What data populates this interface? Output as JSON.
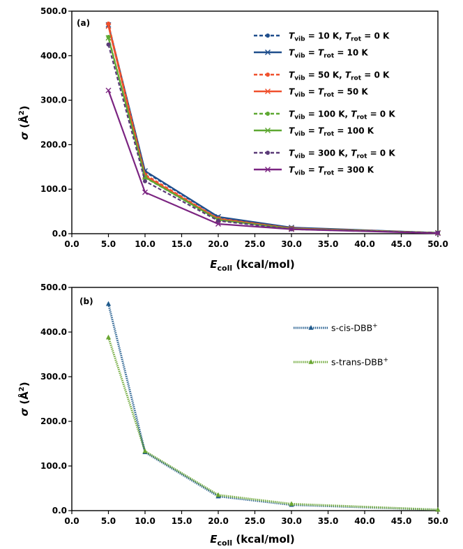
{
  "chart_data": [
    {
      "type": "line",
      "panel_label": "(a)",
      "xlabel": {
        "main": "E",
        "sub": "coll",
        "rest": " (kcal/mol)"
      },
      "ylabel": {
        "sigma": "σ",
        "unit": "(Å",
        "sup": "2",
        "close": ")"
      },
      "xlim": [
        0,
        50
      ],
      "ylim": [
        0,
        500
      ],
      "x_ticks": [
        "0.0",
        "5.0",
        "10.0",
        "15.0",
        "20.0",
        "25.0",
        "30.0",
        "35.0",
        "40.0",
        "45.0",
        "50.0"
      ],
      "y_ticks": [
        "0.0",
        "100.0",
        "200.0",
        "300.0",
        "400.0",
        "500.0"
      ],
      "x": [
        5,
        10,
        20,
        30,
        50
      ],
      "legend_position": "top-right",
      "series": [
        {
          "name": "Tvib = 10 K, Trot = 0 K",
          "label": {
            "a": "T",
            "a_sub": "vib",
            "b": " = 10 K, ",
            "c": "T",
            "c_sub": "rot",
            "d": " = 0 K"
          },
          "color": "#1f4e8c",
          "style": "dashed",
          "marker": "circle",
          "values": [
            470,
            139,
            37,
            13,
            2
          ]
        },
        {
          "name": "Tvib = Trot = 10 K",
          "label": {
            "a": "T",
            "a_sub": "vib",
            "b": " = ",
            "c": "T",
            "c_sub": "rot",
            "d": " = 10 K"
          },
          "color": "#1f4e8c",
          "style": "solid",
          "marker": "x",
          "values": [
            469,
            141,
            38,
            14,
            2
          ]
        },
        {
          "name": "Tvib = 50 K, Trot = 0 K",
          "label": {
            "a": "T",
            "a_sub": "vib",
            "b": " = 50 K, ",
            "c": "T",
            "c_sub": "rot",
            "d": " = 0 K"
          },
          "color": "#f0502d",
          "style": "dashed",
          "marker": "circle",
          "values": [
            472,
            133,
            34,
            12,
            2
          ]
        },
        {
          "name": "Tvib = Trot = 50 K",
          "label": {
            "a": "T",
            "a_sub": "vib",
            "b": " = ",
            "c": "T",
            "c_sub": "rot",
            "d": " = 50 K"
          },
          "color": "#f0502d",
          "style": "solid",
          "marker": "x",
          "values": [
            466,
            130,
            33,
            12,
            2
          ]
        },
        {
          "name": "Tvib = 100 K, Trot = 0 K",
          "label": {
            "a": "T",
            "a_sub": "vib",
            "b": " = 100 K, ",
            "c": "T",
            "c_sub": "rot",
            "d": " = 0 K"
          },
          "color": "#5ea832",
          "style": "dashed",
          "marker": "circle",
          "values": [
            442,
            126,
            31,
            11,
            2
          ]
        },
        {
          "name": "Tvib = Trot = 100 K",
          "label": {
            "a": "T",
            "a_sub": "vib",
            "b": " = ",
            "c": "T",
            "c_sub": "rot",
            "d": " = 100 K"
          },
          "color": "#5ea832",
          "style": "solid",
          "marker": "x",
          "values": [
            440,
            127,
            31,
            11,
            2
          ]
        },
        {
          "name": "Tvib = 300 K, Trot = 0 K",
          "label": {
            "a": "T",
            "a_sub": "vib",
            "b": " = 300 K, ",
            "c": "T",
            "c_sub": "rot",
            "d": " = 0 K"
          },
          "color": "#5a3a78",
          "style": "dashed",
          "marker": "circle",
          "values": [
            425,
            118,
            29,
            10,
            2
          ]
        },
        {
          "name": "Tvib = Trot = 300 K",
          "label": {
            "a": "T",
            "a_sub": "vib",
            "b": " = ",
            "c": "T",
            "c_sub": "rot",
            "d": " = 300 K"
          },
          "color": "#7b2481",
          "style": "solid",
          "marker": "x",
          "values": [
            322,
            93,
            22,
            10,
            1
          ]
        }
      ]
    },
    {
      "type": "line",
      "panel_label": "(b)",
      "xlabel": {
        "main": "E",
        "sub": "coll",
        "rest": " (kcal/mol)"
      },
      "ylabel": {
        "sigma": "σ",
        "unit": "(Å",
        "sup": "2",
        "close": ")"
      },
      "xlim": [
        0,
        50
      ],
      "ylim": [
        0,
        500
      ],
      "x_ticks": [
        "0.0",
        "5.0",
        "10.0",
        "15.0",
        "20.0",
        "25.0",
        "30.0",
        "35.0",
        "40.0",
        "45.0",
        "50.0"
      ],
      "y_ticks": [
        "0.0",
        "100.0",
        "200.0",
        "300.0",
        "400.0",
        "500.0"
      ],
      "x": [
        5,
        10,
        20,
        30,
        50
      ],
      "legend_position": "top-right",
      "series": [
        {
          "name": "s-cis-DBB+",
          "label": {
            "text": "s-cis-DBB",
            "sup": "+"
          },
          "color": "#1f5a8c",
          "style": "dotted",
          "marker": "triangle",
          "values": [
            463,
            131,
            32,
            13,
            2
          ]
        },
        {
          "name": "s-trans-DBB+",
          "label": {
            "text": "s-trans-DBB",
            "sup": "+"
          },
          "color": "#6aa632",
          "style": "dotted",
          "marker": "triangle",
          "values": [
            388,
            133,
            35,
            15,
            2
          ]
        }
      ]
    }
  ]
}
